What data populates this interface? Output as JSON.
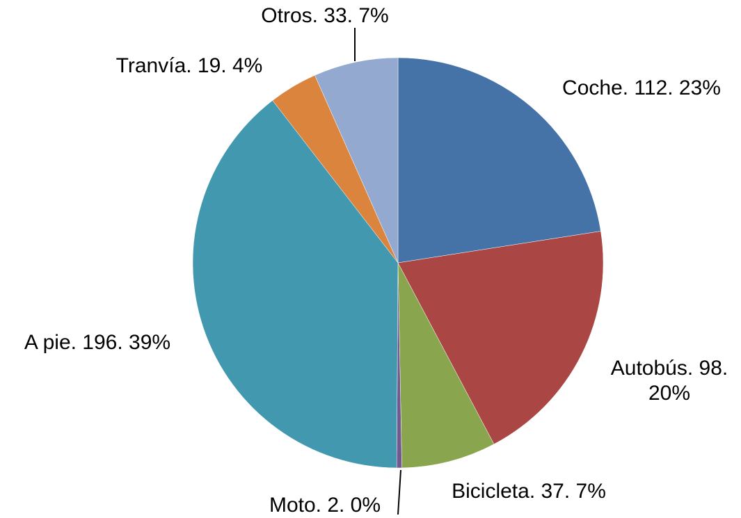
{
  "chart_data": {
    "type": "pie",
    "values": [
      112,
      98,
      37,
      2,
      196,
      19,
      33
    ],
    "value_labels": [
      "Coche. 112. 23%",
      "Autobús. 98. 20%",
      "Bicicleta. 37. 7%",
      "Moto. 2. 0%",
      "A pie. 196. 39%",
      "Tranvía. 19. 4%",
      "Otros. 33. 7%"
    ],
    "colors": [
      "#4572a7",
      "#aa4643",
      "#89a54e",
      "#71588f",
      "#4198af",
      "#db843d",
      "#93a9cf"
    ]
  }
}
